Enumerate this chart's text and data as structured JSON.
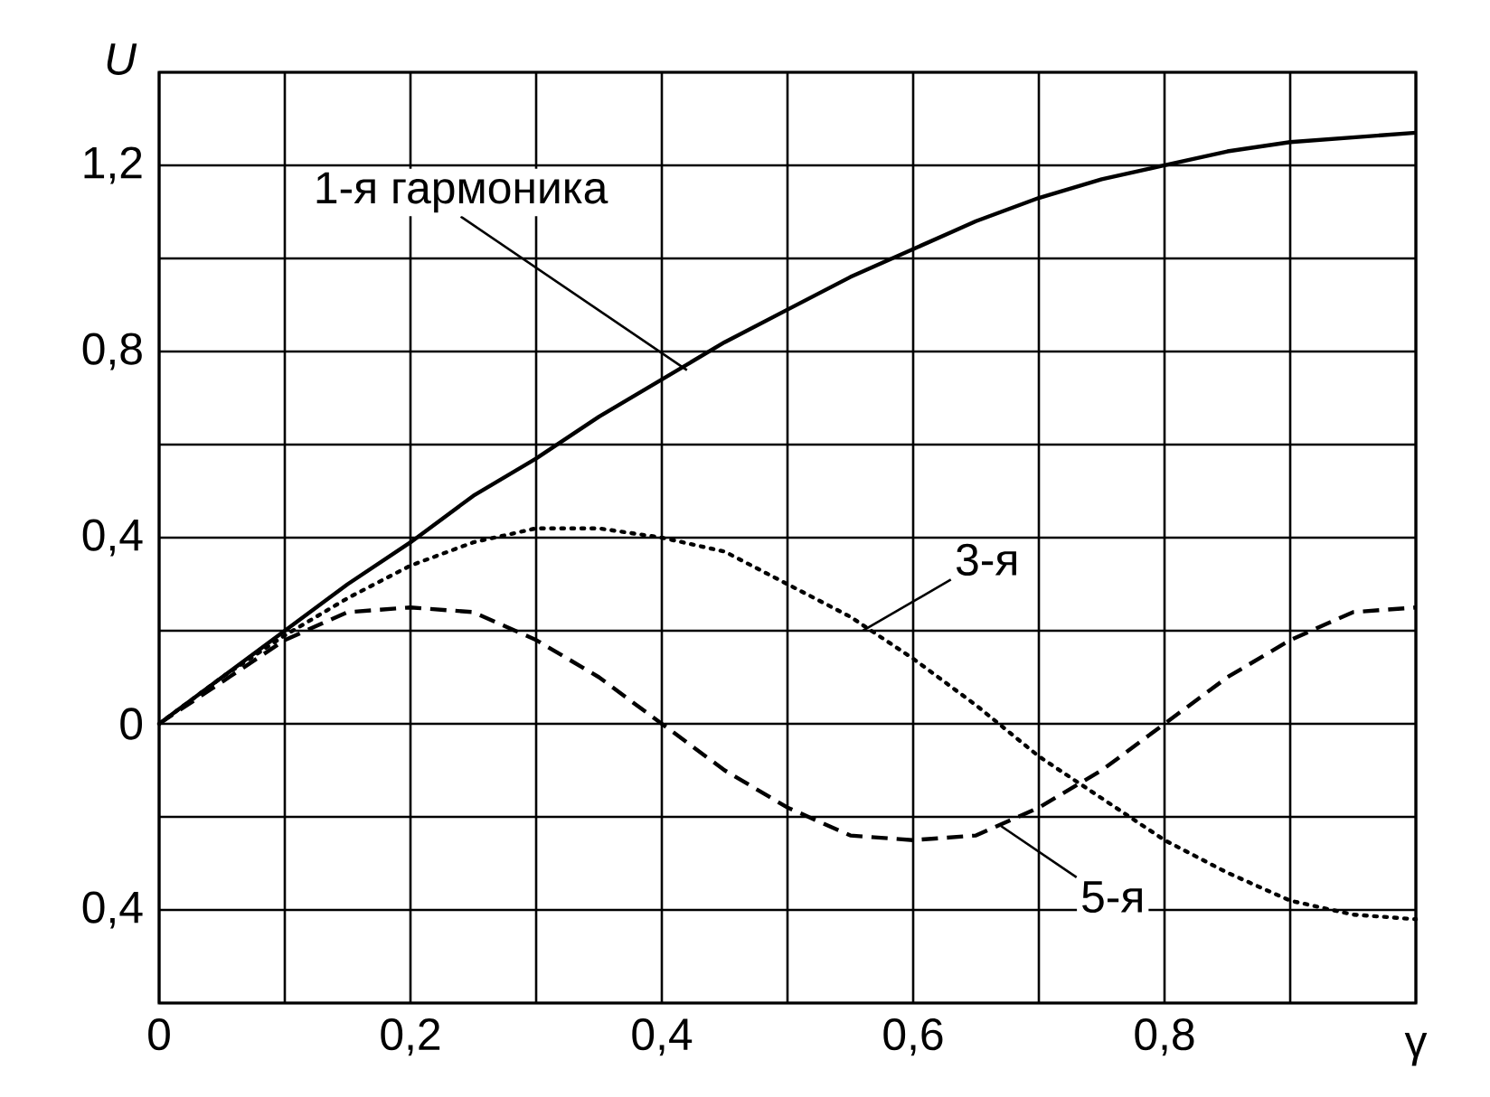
{
  "chart_data": {
    "type": "line",
    "xlabel": "γ",
    "ylabel": "U",
    "xlim": [
      0,
      1
    ],
    "ylim": [
      -0.6,
      1.4
    ],
    "xticks": [
      {
        "value": 0,
        "label": "0"
      },
      {
        "value": 0.1,
        "label": null
      },
      {
        "value": 0.2,
        "label": "0,2"
      },
      {
        "value": 0.3,
        "label": null
      },
      {
        "value": 0.4,
        "label": "0,4"
      },
      {
        "value": 0.5,
        "label": null
      },
      {
        "value": 0.6,
        "label": "0,6"
      },
      {
        "value": 0.7,
        "label": null
      },
      {
        "value": 0.8,
        "label": "0,8"
      },
      {
        "value": 0.9,
        "label": null
      },
      {
        "value": 1,
        "label": null
      }
    ],
    "yticks": [
      {
        "value": -0.6,
        "label": null
      },
      {
        "value": -0.4,
        "label": "0,4"
      },
      {
        "value": -0.2,
        "label": null
      },
      {
        "value": 0,
        "label": "0"
      },
      {
        "value": 0.2,
        "label": null
      },
      {
        "value": 0.4,
        "label": "0,4"
      },
      {
        "value": 0.6,
        "label": null
      },
      {
        "value": 0.8,
        "label": "0,8"
      },
      {
        "value": 1,
        "label": null
      },
      {
        "value": 1.2,
        "label": "1,2"
      },
      {
        "value": 1.4,
        "label": null
      }
    ],
    "grid": true,
    "marker": "none",
    "x": [
      0,
      0.05,
      0.1,
      0.15,
      0.2,
      0.25,
      0.3,
      0.35,
      0.4,
      0.45,
      0.5,
      0.55,
      0.6,
      0.65,
      0.7,
      0.75,
      0.8,
      0.85,
      0.9,
      0.95,
      1
    ],
    "series": [
      {
        "color": "#000000",
        "line_style": "solid",
        "values": [
          0,
          0.1,
          0.2,
          0.3,
          0.39,
          0.49,
          0.57,
          0.66,
          0.74,
          0.82,
          0.89,
          0.96,
          1.02,
          1.08,
          1.13,
          1.17,
          1.2,
          1.23,
          1.25,
          1.26,
          1.27
        ]
      },
      {
        "color": "#000000",
        "line_style": "dotted",
        "values": [
          0,
          0.1,
          0.19,
          0.27,
          0.34,
          0.39,
          0.42,
          0.42,
          0.4,
          0.37,
          0.3,
          0.23,
          0.14,
          0.04,
          -0.07,
          -0.16,
          -0.25,
          -0.32,
          -0.38,
          -0.41,
          -0.42
        ]
      },
      {
        "color": "#000000",
        "line_style": "dashed",
        "values": [
          0,
          0.09,
          0.18,
          0.24,
          0.25,
          0.24,
          0.18,
          0.1,
          0,
          -0.1,
          -0.18,
          -0.24,
          -0.25,
          -0.24,
          -0.18,
          -0.1,
          0,
          0.1,
          0.18,
          0.24,
          0.25
        ]
      }
    ],
    "annotations": [
      {
        "text": "1-я гармоника",
        "x": 0.42,
        "y": 0.76
      },
      {
        "text": "3-я",
        "x": 0.56,
        "y": 0.2
      },
      {
        "text": "5-я",
        "x": 0.67,
        "y": -0.22
      }
    ]
  }
}
